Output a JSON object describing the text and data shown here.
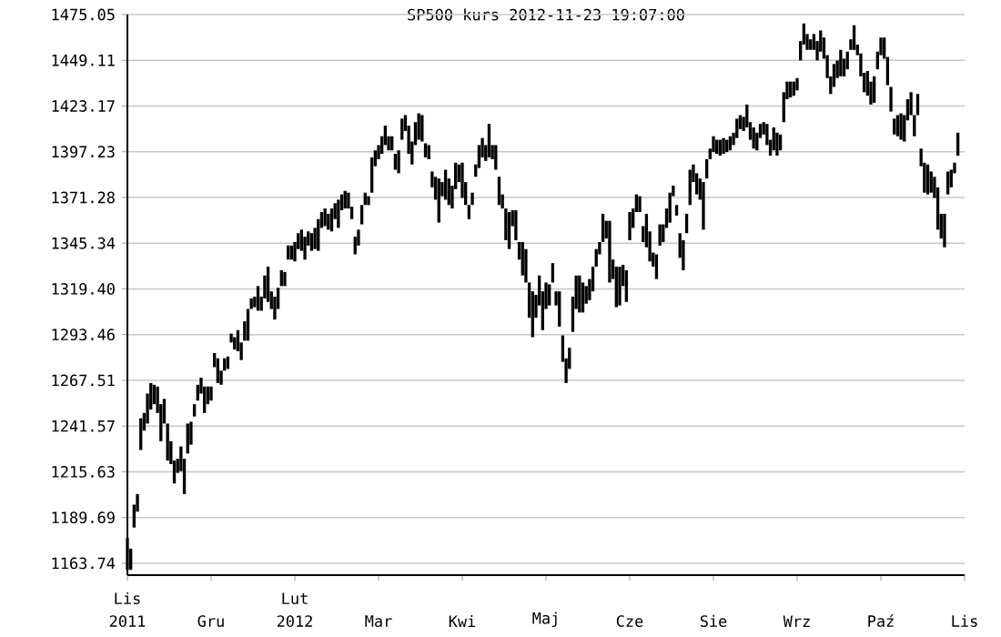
{
  "chart_data": {
    "type": "bar",
    "title": "SP500 kurs  2012-11-23 19:07:00",
    "color": "#000000",
    "grid": "y",
    "categories": [
      "Lis 2011",
      null,
      null,
      null,
      null,
      null,
      null,
      null,
      null,
      null,
      null,
      null,
      null,
      null,
      null,
      null,
      null,
      null,
      null,
      null,
      null,
      null,
      null,
      null,
      null,
      "Gru",
      null,
      null,
      null,
      null,
      null,
      null,
      null,
      null,
      null,
      null,
      null,
      null,
      null,
      null,
      null,
      null,
      null,
      null,
      null,
      null,
      null,
      null,
      null,
      null,
      "Lut 2012",
      null,
      null,
      null,
      null,
      null,
      null,
      null,
      null,
      null,
      null,
      null,
      null,
      null,
      null,
      null,
      null,
      null,
      null,
      null,
      null,
      null,
      null,
      null,
      null,
      "Mar",
      null,
      null,
      null,
      null,
      null,
      null,
      null,
      null,
      null,
      null,
      null,
      null,
      null,
      null,
      null,
      null,
      null,
      null,
      null,
      null,
      null,
      null,
      null,
      null,
      "Kwi",
      null,
      null,
      null,
      null,
      null,
      null,
      null,
      null,
      null,
      null,
      null,
      null,
      null,
      null,
      null,
      null,
      null,
      null,
      null,
      null,
      null,
      null,
      null,
      null,
      "Maj",
      null,
      null,
      null,
      null,
      null,
      null,
      null,
      null,
      null,
      null,
      null,
      null,
      null,
      null,
      null,
      null,
      null,
      null,
      null,
      null,
      null,
      null,
      null,
      null,
      "Cze",
      null,
      null,
      null,
      null,
      null,
      null,
      null,
      null,
      null,
      null,
      null,
      null,
      null,
      null,
      null,
      null,
      null,
      null,
      null,
      null,
      null,
      null,
      null,
      null,
      "Sie",
      null,
      null,
      null,
      null,
      null,
      null,
      null,
      null,
      null,
      null,
      null,
      null,
      null,
      null,
      null,
      null,
      null,
      null,
      null,
      null,
      null,
      null,
      null,
      null,
      "Wrz",
      null,
      null,
      null,
      null,
      null,
      null,
      null,
      null,
      null,
      null,
      null,
      null,
      null,
      null,
      null,
      null,
      null,
      null,
      null,
      null,
      null,
      null,
      null,
      null,
      "Paź",
      null,
      null,
      null,
      null,
      null,
      null,
      null,
      null,
      null,
      null,
      null,
      null,
      null,
      null,
      null,
      null,
      null,
      null,
      null,
      null,
      null,
      null,
      null,
      null,
      "Lis"
    ],
    "ylim": [
      1157,
      1475.05
    ],
    "yticks": [
      1163.74,
      1189.69,
      1215.63,
      1241.57,
      1267.51,
      1293.46,
      {
        "value": 1319.4,
        "label": "1319.40"
      },
      1345.34,
      1371.28,
      1397.23,
      1423.17,
      1449.11,
      1475.05
    ],
    "base": [
      1160,
      1160,
      1184,
      1193,
      1228,
      1239,
      1243,
      1251,
      1254,
      1249,
      1233,
      1243,
      1222,
      1220,
      1209,
      1215,
      1216,
      1203,
      1226,
      1231,
      1247,
      1256,
      1260,
      1249,
      1254,
      1256,
      1275,
      1266,
      1265,
      1273,
      1274,
      1289,
      1285,
      1284,
      1279,
      1290,
      1290,
      1308,
      1309,
      1307,
      1307,
      1314,
      1312,
      1308,
      1302,
      1308,
      1321,
      1321,
      1336,
      1336,
      1335,
      1342,
      1341,
      1336,
      1344,
      1341,
      1342,
      1341,
      1354,
      1355,
      1353,
      1352,
      1359,
      1354,
      1364,
      1365,
      1365,
      1359,
      1339,
      1344,
      1356,
      1367,
      1367,
      1374,
      1389,
      1393,
      1396,
      1401,
      1398,
      1398,
      1387,
      1385,
      1404,
      1409,
      1396,
      1390,
      1401,
      1404,
      1403,
      1394,
      1393,
      1377,
      1370,
      1357,
      1372,
      1370,
      1367,
      1365,
      1376,
      1380,
      1371,
      1367,
      1359,
      1367,
      1383,
      1388,
      1394,
      1392,
      1394,
      1393,
      1387,
      1367,
      1365,
      1347,
      1342,
      1355,
      1347,
      1336,
      1327,
      1323,
      1303,
      1292,
      1303,
      1310,
      1296,
      1308,
      1310,
      1323,
      1310,
      1298,
      1278,
      1266,
      1274,
      1295,
      1308,
      1306,
      1306,
      1311,
      1313,
      1318,
      1332,
      1339,
      1346,
      1348,
      1323,
      1325,
      1309,
      1310,
      1321,
      1312,
      1347,
      1354,
      1363,
      1363,
      1346,
      1343,
      1335,
      1332,
      1325,
      1344,
      1346,
      1354,
      1357,
      1372,
      1361,
      1337,
      1330,
      1351,
      1367,
      1380,
      1373,
      1370,
      1353,
      1382,
      1393,
      1397,
      1396,
      1395,
      1396,
      1397,
      1398,
      1401,
      1405,
      1410,
      1409,
      1411,
      1404,
      1399,
      1398,
      1405,
      1407,
      1401,
      1395,
      1398,
      1395,
      1398,
      1414,
      1427,
      1428,
      1429,
      1432,
      1449,
      1458,
      1455,
      1455,
      1455,
      1449,
      1454,
      1450,
      1439,
      1430,
      1434,
      1439,
      1440,
      1440,
      1444,
      1455,
      1455,
      1452,
      1440,
      1431,
      1429,
      1424,
      1425,
      1444,
      1452,
      1450,
      1435,
      1420,
      1407,
      1406,
      1404,
      1403,
      1415,
      1418,
      1406,
      1418,
      1389,
      1374,
      1373,
      1374,
      1371,
      1353,
      1348,
      1343,
      1373,
      1377,
      1385,
      1395,
      null,
      null
    ],
    "values": [
      18,
      12,
      13,
      10,
      18,
      10,
      17,
      15,
      11,
      15,
      21,
      14,
      21,
      13,
      13,
      8,
      14,
      20,
      17,
      13,
      7,
      9,
      9,
      15,
      10,
      8,
      8,
      14,
      8,
      7,
      7,
      5,
      7,
      12,
      10,
      11,
      18,
      6,
      6,
      14,
      8,
      13,
      20,
      10,
      13,
      12,
      9,
      8,
      8,
      8,
      11,
      9,
      12,
      13,
      8,
      10,
      12,
      18,
      9,
      10,
      9,
      13,
      9,
      16,
      9,
      10,
      9,
      7,
      10,
      9,
      11,
      7,
      5,
      20,
      9,
      8,
      10,
      11,
      8,
      8,
      9,
      13,
      12,
      9,
      16,
      13,
      13,
      15,
      15,
      8,
      8,
      9,
      13,
      25,
      8,
      17,
      15,
      13,
      15,
      10,
      20,
      13,
      8,
      7,
      7,
      13,
      11,
      9,
      19,
      8,
      14,
      16,
      8,
      18,
      21,
      9,
      17,
      10,
      19,
      19,
      20,
      26,
      13,
      17,
      22,
      15,
      12,
      11,
      8,
      20,
      15,
      14,
      12,
      20,
      19,
      21,
      17,
      10,
      12,
      14,
      10,
      7,
      16,
      10,
      35,
      11,
      23,
      22,
      12,
      18,
      16,
      11,
      10,
      9,
      9,
      19,
      17,
      8,
      14,
      12,
      10,
      11,
      17,
      6,
      6,
      14,
      17,
      11,
      20,
      10,
      12,
      12,
      27,
      11,
      6,
      9,
      8,
      9,
      9,
      7,
      8,
      7,
      11,
      8,
      8,
      13,
      10,
      12,
      10,
      8,
      7,
      12,
      9,
      13,
      13,
      9,
      17,
      10,
      9,
      8,
      7,
      11,
      12,
      9,
      6,
      9,
      11,
      12,
      12,
      13,
      10,
      13,
      10,
      15,
      10,
      10,
      6,
      14,
      6,
      13,
      11,
      14,
      13,
      15,
      10,
      10,
      12,
      16,
      14,
      9,
      12,
      15,
      15,
      12,
      13,
      12,
      12,
      10,
      17,
      17,
      12,
      12,
      24,
      14,
      19,
      13,
      10,
      6,
      13,
      null,
      null
    ]
  }
}
